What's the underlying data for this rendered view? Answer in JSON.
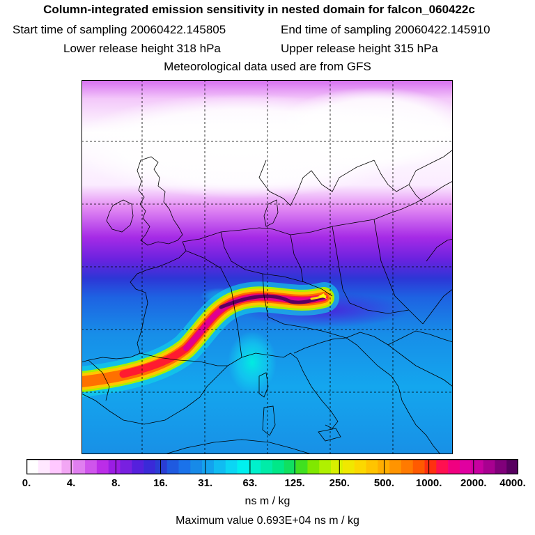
{
  "header": {
    "title": "Column-integrated emission sensitivity in nested domain for falcon_060422c",
    "start_label": "Start time of sampling 20060422.145805",
    "end_label": "End time of sampling 20060422.145910",
    "lower_label": "Lower release height  318 hPa",
    "upper_label": "Upper release height  315 hPa",
    "met_label": "Meteorological data used are from GFS"
  },
  "colorbar": {
    "ticks": [
      "0.",
      "4.",
      "8.",
      "16.",
      "31.",
      "63.",
      "125.",
      "250.",
      "500.",
      "1000.",
      "2000.",
      "4000."
    ],
    "colors": [
      "#ffffff",
      "#ffe8ff",
      "#ffc8ff",
      "#f2a6f4",
      "#e07ff0",
      "#cf55ec",
      "#bb2de8",
      "#9b1de4",
      "#7820e0",
      "#5520dd",
      "#3a2ad8",
      "#2a3ed4",
      "#1f5ae0",
      "#1a72ea",
      "#178ae8",
      "#13a2ee",
      "#10bcf2",
      "#0bd6f4",
      "#00f0f0",
      "#00f0cc",
      "#00eca8",
      "#00e888",
      "#10e060",
      "#40e020",
      "#80e800",
      "#b0f000",
      "#d8f000",
      "#f0e800",
      "#fcd800",
      "#ffc400",
      "#ffae00",
      "#ff9400",
      "#ff7a00",
      "#ff5a00",
      "#ff3010",
      "#ff1050",
      "#f00080",
      "#e000a0",
      "#c800a0",
      "#a80090",
      "#80007a",
      "#580060"
    ],
    "units": "ns m / kg"
  },
  "max_value_label": "Maximum value  0.693E+04 ns m / kg"
}
